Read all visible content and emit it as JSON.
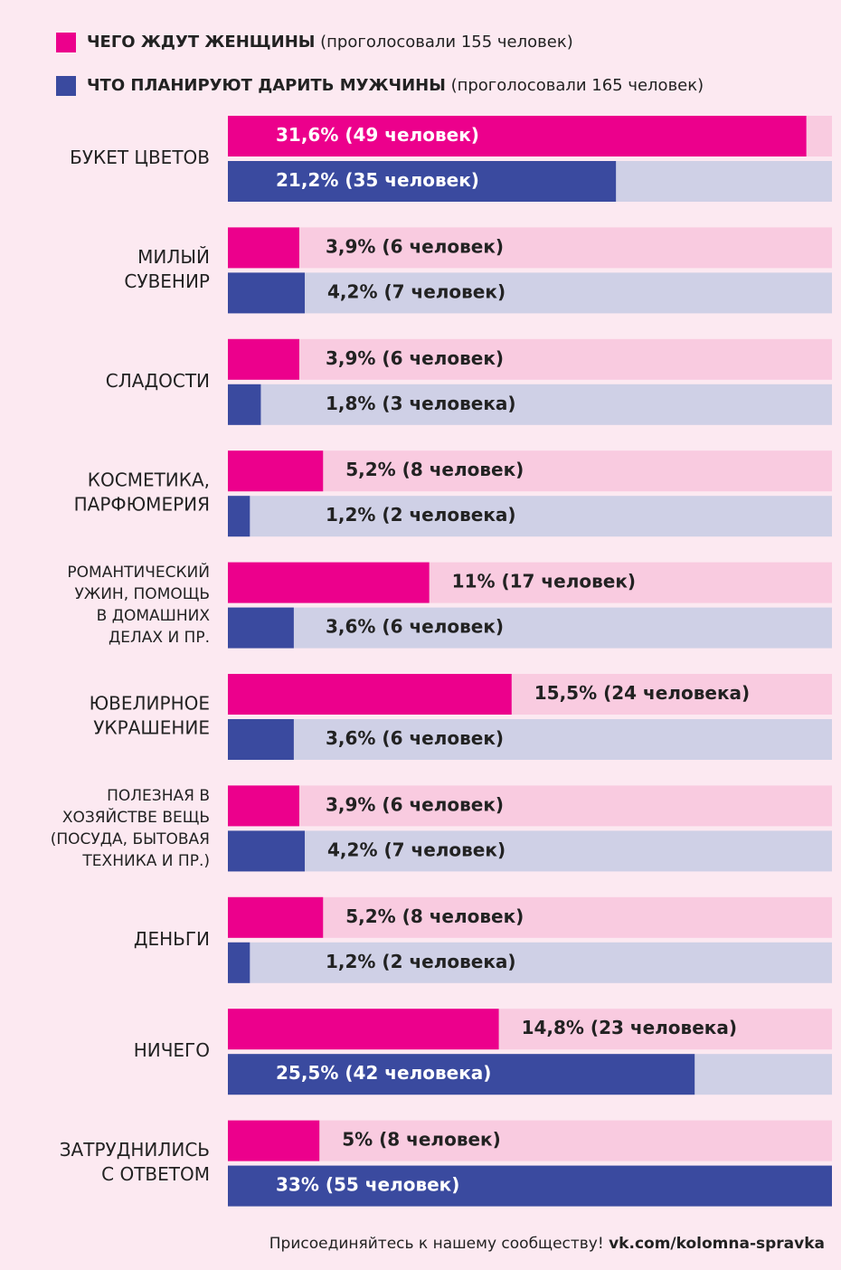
{
  "chart_data": {
    "type": "bar",
    "orientation": "horizontal",
    "categories": [
      [
        "БУКЕТ ЦВЕТОВ"
      ],
      [
        "МИЛЫЙ",
        "СУВЕНИР"
      ],
      [
        "СЛАДОСТИ"
      ],
      [
        "КОСМЕТИКА,",
        "ПАРФЮМЕРИЯ"
      ],
      [
        "РОМАНТИЧЕСКИЙ",
        "УЖИН, ПОМОЩЬ",
        "В ДОМАШНИХ",
        "ДЕЛАХ И ПР."
      ],
      [
        "ЮВЕЛИРНОЕ",
        "УКРАШЕНИЕ"
      ],
      [
        "ПОЛЕЗНАЯ В",
        "ХОЗЯЙСТВЕ ВЕЩЬ",
        "(ПОСУДА, БЫТОВАЯ",
        "ТЕХНИКА И ПР.)"
      ],
      [
        "ДЕНЬГИ"
      ],
      [
        "НИЧЕГО"
      ],
      [
        "ЗАТРУДНИЛИСЬ",
        "С ОТВЕТОМ"
      ]
    ],
    "series": [
      {
        "name": "ЧЕГО ЖДУТ ЖЕНЩИНЫ",
        "note": "(проголосовали 155 человек)",
        "color": "#ec008c",
        "track_color": "#f9cbe0",
        "values": [
          31.6,
          3.9,
          3.9,
          5.2,
          11,
          15.5,
          3.9,
          5.2,
          14.8,
          5
        ],
        "value_labels": [
          "31,6% (49 человек)",
          "3,9% (6 человек)",
          "3,9% (6 человек)",
          "5,2% (8 человек)",
          "11% (17 человек)",
          "15,5% (24 человека)",
          "3,9% (6 человек)",
          "5,2% (8 человек)",
          "14,8% (23 человека)",
          "5% (8 человек)"
        ]
      },
      {
        "name": "ЧТО ПЛАНИРУЮТ ДАРИТЬ МУЖЧИНЫ",
        "note": "(проголосовали 165 человек)",
        "color": "#3a4a9f",
        "track_color": "#cfd0e6",
        "values": [
          21.2,
          4.2,
          1.8,
          1.2,
          3.6,
          3.6,
          4.2,
          1.2,
          25.5,
          33
        ],
        "value_labels": [
          "21,2% (35 человек)",
          "4,2% (7 человек)",
          "1,8% (3 человека)",
          "1,2% (2 человека)",
          "3,6% (6 человек)",
          "3,6% (6 человек)",
          "4,2% (7 человек)",
          "1,2% (2 человека)",
          "25,5% (42 человека)",
          "33% (55 человек)"
        ]
      }
    ],
    "xlim": [
      0,
      33
    ],
    "footer": {
      "text": "Присоединяйтесь к нашему сообществу!",
      "link": "vk.com/kolomna-spravka"
    }
  }
}
